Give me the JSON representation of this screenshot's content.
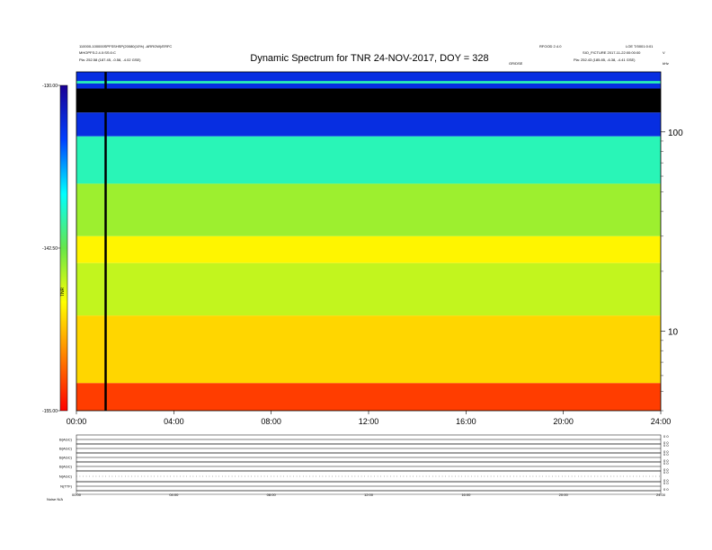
{
  "header": {
    "left_line1": "110000-100000SPFSSHSP(20080(10%) -ARROW)/ERFC",
    "left_line2": "MHOPFS:2.4.0:SS:0:C",
    "left_line3": "Pla:  252.58 (187.45, -0.58, -4.02 GSE)",
    "right_line1": "RFOOD 2.4.0",
    "right_line1b": "LOE T/0001:0:01",
    "right_line2": "SIO_FICTURE 2017-11-22:00:00:00",
    "right_line3": "Pla:  252.43 (185.85, -6.38, -4.41 GSE)",
    "mid_tag": "GR/DSE",
    "corner_tag": "kHz",
    "corner_tag2": "V"
  },
  "footer_label": "Noise  N/A",
  "chart_data": {
    "type": "heatmap",
    "title": "Dynamic Spectrum for TNR 24-NOV-2017, DOY = 328",
    "x_ticks": [
      "00:00",
      "04:00",
      "08:00",
      "12:00",
      "16:00",
      "20:00",
      "24:00"
    ],
    "x_range_hours": [
      0,
      24
    ],
    "y_scale": "log",
    "y_ticks": [
      10,
      100
    ],
    "y_range_khz": [
      4,
      200
    ],
    "colorbar_ticks": [
      "-130.00",
      "-142.50",
      "-155.00"
    ],
    "colorbar_range": [
      -155,
      -130
    ],
    "colorbar_label": "TNR",
    "colormap": [
      "#1a0094",
      "#0040ff",
      "#00ffff",
      "#66e64a",
      "#ffff00",
      "#ff8000",
      "#ff0000"
    ],
    "annotations": {
      "vertical_line_hour": 1.2
    },
    "bands": [
      {
        "from_khz": 160,
        "to_khz": 200,
        "value": -133,
        "note": "top blue band"
      },
      {
        "from_khz": 175,
        "to_khz": 180,
        "value": -140,
        "note": "cyan stripe"
      },
      {
        "from_khz": 125,
        "to_khz": 165,
        "value": -156,
        "note": "black gap"
      },
      {
        "from_khz": 95,
        "to_khz": 125,
        "value": -133,
        "note": "blue"
      },
      {
        "from_khz": 55,
        "to_khz": 95,
        "value": -140,
        "note": "cyan"
      },
      {
        "from_khz": 30,
        "to_khz": 55,
        "value": -144,
        "note": "green"
      },
      {
        "from_khz": 22,
        "to_khz": 30,
        "value": -147,
        "note": "yellow-orange"
      },
      {
        "from_khz": 12,
        "to_khz": 22,
        "value": -145,
        "note": "green"
      },
      {
        "from_khz": 5.5,
        "to_khz": 12,
        "value": -148,
        "note": "yellow"
      },
      {
        "from_khz": 4,
        "to_khz": 5.5,
        "value": -153,
        "note": "red"
      }
    ],
    "panels": [
      {
        "label": "B(AGC)",
        "right": [
          "0 0",
          "0 0"
        ]
      },
      {
        "label": "B(AGC)",
        "right": [
          "0 0",
          "0 0"
        ]
      },
      {
        "label": "B(AGC)",
        "right": [
          "0 0",
          "0 0"
        ]
      },
      {
        "label": "B(AGC)",
        "right": [
          "0 0",
          "0 0"
        ]
      },
      {
        "label": "N(AGC)",
        "right": [
          "0 0",
          "0 0"
        ]
      },
      {
        "label": "N(TTF)",
        "right": [
          "0 0",
          "0 0"
        ]
      }
    ],
    "panel_x_ticks": [
      "00:00",
      "04:00",
      "08:00",
      "12:00",
      "16:00",
      "20:00",
      "24:00"
    ]
  }
}
